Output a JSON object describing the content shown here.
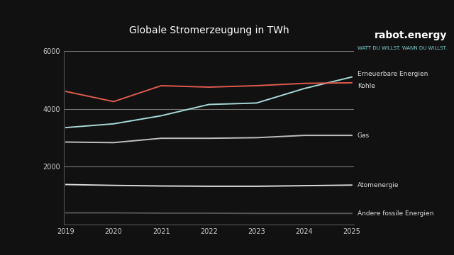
{
  "chart_data": {
    "type": "line",
    "title": "Globale Stromerzeugung in TWh",
    "annotations": [
      "rabot.energy",
      "WATT DU WILLST. WANN DU WILLST."
    ],
    "categories": [
      "2019",
      "2020",
      "2021",
      "2022",
      "2023",
      "2024",
      "2025"
    ],
    "series": [
      {
        "name": "Erneuerbare Energien",
        "color": "#a8d8d8",
        "values": [
          3350,
          3480,
          3760,
          4150,
          4200,
          4700,
          5100
        ]
      },
      {
        "name": "Kohle",
        "color": "#e05a4f",
        "values": [
          4600,
          4250,
          4800,
          4750,
          4800,
          4880,
          4900
        ]
      },
      {
        "name": "Gas",
        "color": "#bfbfbf",
        "values": [
          2850,
          2830,
          2980,
          2980,
          3000,
          3080,
          3080
        ]
      },
      {
        "name": "Atomenergie",
        "color": "#d9d9d9",
        "values": [
          1380,
          1350,
          1330,
          1320,
          1320,
          1340,
          1360
        ]
      },
      {
        "name": "Andere fossile Energien",
        "color": "#555555",
        "values": [
          400,
          400,
          390,
          390,
          380,
          380,
          380
        ]
      }
    ],
    "ylim": [
      0,
      6000
    ],
    "yticks": [
      2000,
      4000,
      6000
    ],
    "grid": true
  }
}
